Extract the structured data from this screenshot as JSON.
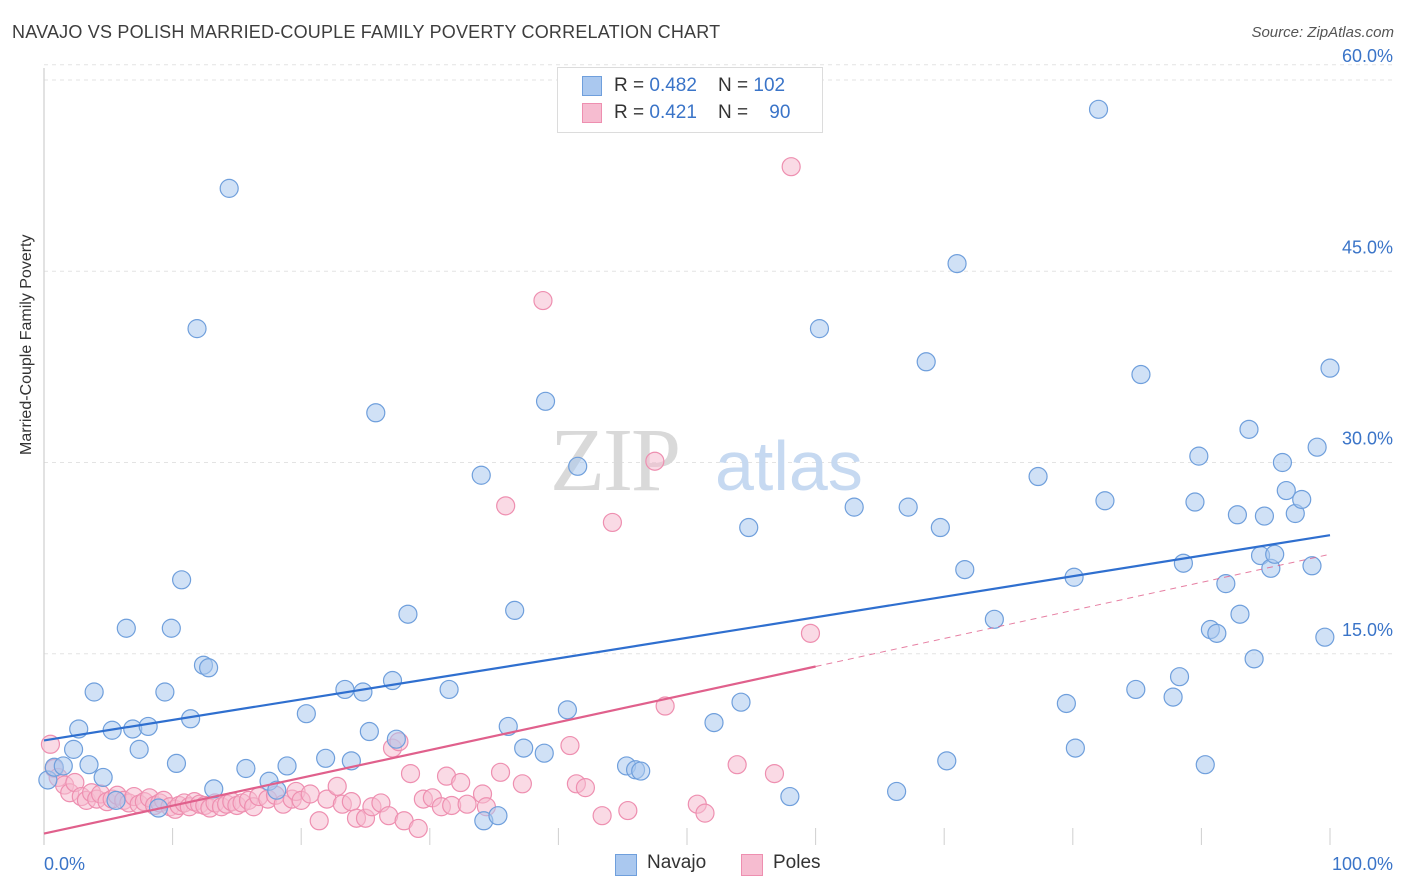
{
  "header": {
    "title": "NAVAJO VS POLISH MARRIED-COUPLE FAMILY POVERTY CORRELATION CHART",
    "source": "Source: ZipAtlas.com"
  },
  "legend": {
    "rows": [
      {
        "r_label": "R = ",
        "r_value": "0.482",
        "n_label": "N = ",
        "n_value": "102"
      },
      {
        "r_label": "R = ",
        "r_value": "0.421",
        "n_label": "N = ",
        "n_value": "90"
      }
    ],
    "bottom": [
      "Navajo",
      "Poles"
    ]
  },
  "colors": {
    "navajo_fill": "#aac8ef",
    "navajo_stroke": "#6f9fdc",
    "navajo_line": "#2f6fcf",
    "poles_fill": "#f6bcd0",
    "poles_stroke": "#ee8fb0",
    "poles_line": "#e0608c",
    "axis_text": "#3a74c8",
    "grid": "#e3e3e3"
  },
  "chart_data": {
    "type": "scatter",
    "title": "NAVAJO VS POLISH MARRIED-COUPLE FAMILY POVERTY CORRELATION CHART",
    "xlabel": "",
    "ylabel": "Married-Couple Family Poverty",
    "xlim": [
      0,
      100
    ],
    "ylim": [
      0,
      65
    ],
    "x_tick_labels": [
      "0.0%",
      "100.0%"
    ],
    "y_ticks": [
      15,
      30,
      45,
      60
    ],
    "y_tick_labels": [
      "15.0%",
      "30.0%",
      "45.0%",
      "60.0%"
    ],
    "grid": true,
    "legend_position": "top-center",
    "watermark": "ZIPatlas",
    "series": [
      {
        "name": "Navajo",
        "R": 0.482,
        "N": 102,
        "trend": {
          "x": [
            0,
            100
          ],
          "y": [
            8.2,
            24.3
          ]
        },
        "points": [
          [
            0.3,
            5.1
          ],
          [
            0.8,
            6.1
          ],
          [
            1.5,
            6.2
          ],
          [
            2.3,
            7.5
          ],
          [
            2.7,
            9.1
          ],
          [
            3.5,
            6.3
          ],
          [
            3.9,
            12.0
          ],
          [
            4.6,
            5.3
          ],
          [
            5.3,
            9.0
          ],
          [
            5.6,
            3.5
          ],
          [
            6.4,
            17.0
          ],
          [
            6.9,
            9.1
          ],
          [
            7.4,
            7.5
          ],
          [
            8.1,
            9.3
          ],
          [
            8.9,
            2.9
          ],
          [
            9.4,
            12.0
          ],
          [
            9.9,
            17.0
          ],
          [
            10.3,
            6.4
          ],
          [
            10.7,
            20.8
          ],
          [
            11.4,
            9.9
          ],
          [
            11.9,
            40.5
          ],
          [
            12.4,
            14.1
          ],
          [
            12.8,
            13.9
          ],
          [
            13.2,
            4.4
          ],
          [
            14.4,
            51.5
          ],
          [
            15.7,
            6.0
          ],
          [
            17.5,
            5.0
          ],
          [
            18.1,
            4.3
          ],
          [
            18.9,
            6.2
          ],
          [
            20.4,
            10.3
          ],
          [
            21.9,
            6.8
          ],
          [
            23.4,
            12.2
          ],
          [
            23.9,
            6.6
          ],
          [
            24.8,
            12.0
          ],
          [
            25.3,
            8.9
          ],
          [
            25.8,
            33.9
          ],
          [
            27.1,
            12.9
          ],
          [
            27.4,
            8.3
          ],
          [
            28.3,
            18.1
          ],
          [
            31.5,
            12.2
          ],
          [
            34.0,
            29.0
          ],
          [
            34.2,
            1.9
          ],
          [
            35.3,
            2.3
          ],
          [
            36.1,
            9.3
          ],
          [
            36.6,
            18.4
          ],
          [
            37.3,
            7.6
          ],
          [
            38.9,
            7.2
          ],
          [
            39.0,
            34.8
          ],
          [
            40.7,
            10.6
          ],
          [
            41.5,
            29.7
          ],
          [
            45.3,
            6.2
          ],
          [
            46.0,
            5.9
          ],
          [
            46.4,
            5.8
          ],
          [
            52.1,
            9.6
          ],
          [
            54.2,
            11.2
          ],
          [
            54.8,
            24.9
          ],
          [
            58.0,
            3.8
          ],
          [
            60.3,
            40.5
          ],
          [
            63.0,
            26.5
          ],
          [
            66.3,
            4.2
          ],
          [
            67.2,
            26.5
          ],
          [
            68.6,
            37.9
          ],
          [
            69.7,
            24.9
          ],
          [
            70.2,
            6.6
          ],
          [
            71.0,
            45.6
          ],
          [
            71.6,
            21.6
          ],
          [
            73.9,
            17.7
          ],
          [
            77.3,
            28.9
          ],
          [
            79.5,
            11.1
          ],
          [
            80.1,
            21.0
          ],
          [
            80.2,
            7.6
          ],
          [
            82.0,
            57.7
          ],
          [
            82.5,
            27.0
          ],
          [
            84.9,
            12.2
          ],
          [
            85.3,
            36.9
          ],
          [
            87.8,
            11.6
          ],
          [
            88.3,
            13.2
          ],
          [
            88.6,
            22.1
          ],
          [
            89.5,
            26.9
          ],
          [
            89.8,
            30.5
          ],
          [
            90.3,
            6.3
          ],
          [
            90.7,
            16.9
          ],
          [
            91.2,
            16.6
          ],
          [
            91.9,
            20.5
          ],
          [
            92.8,
            25.9
          ],
          [
            93.0,
            18.1
          ],
          [
            93.7,
            32.6
          ],
          [
            94.1,
            14.6
          ],
          [
            94.6,
            22.7
          ],
          [
            94.9,
            25.8
          ],
          [
            95.4,
            21.7
          ],
          [
            95.7,
            22.8
          ],
          [
            96.3,
            30.0
          ],
          [
            96.6,
            27.8
          ],
          [
            97.3,
            26.0
          ],
          [
            97.8,
            27.1
          ],
          [
            98.6,
            21.9
          ],
          [
            99.0,
            31.2
          ],
          [
            99.6,
            16.3
          ],
          [
            100.0,
            37.4
          ]
        ]
      },
      {
        "name": "Poles",
        "R": 0.421,
        "N": 90,
        "trend": {
          "x": [
            0,
            60
          ],
          "y": [
            0.9,
            14.0
          ]
        },
        "trend_extension": {
          "x": [
            60,
            100
          ],
          "y": [
            14.0,
            22.8
          ]
        },
        "points": [
          [
            0.5,
            7.9
          ],
          [
            0.8,
            6.0
          ],
          [
            1.1,
            5.3
          ],
          [
            1.6,
            4.7
          ],
          [
            2.0,
            4.1
          ],
          [
            2.4,
            4.9
          ],
          [
            2.9,
            3.8
          ],
          [
            3.3,
            3.5
          ],
          [
            3.7,
            4.1
          ],
          [
            4.1,
            3.6
          ],
          [
            4.4,
            4.0
          ],
          [
            4.9,
            3.4
          ],
          [
            5.3,
            3.6
          ],
          [
            5.7,
            3.9
          ],
          [
            6.2,
            3.5
          ],
          [
            6.6,
            3.3
          ],
          [
            7.0,
            3.8
          ],
          [
            7.4,
            3.2
          ],
          [
            7.8,
            3.4
          ],
          [
            8.2,
            3.7
          ],
          [
            8.6,
            3.1
          ],
          [
            9.0,
            3.3
          ],
          [
            9.3,
            3.5
          ],
          [
            9.8,
            3.0
          ],
          [
            10.2,
            2.8
          ],
          [
            10.5,
            3.1
          ],
          [
            10.9,
            3.3
          ],
          [
            11.3,
            3.0
          ],
          [
            11.7,
            3.4
          ],
          [
            12.1,
            3.2
          ],
          [
            12.5,
            3.1
          ],
          [
            12.9,
            2.9
          ],
          [
            13.3,
            3.3
          ],
          [
            13.8,
            3.0
          ],
          [
            14.2,
            3.2
          ],
          [
            14.6,
            3.4
          ],
          [
            15.0,
            3.1
          ],
          [
            15.4,
            3.3
          ],
          [
            15.9,
            3.5
          ],
          [
            16.3,
            3.0
          ],
          [
            16.7,
            3.8
          ],
          [
            17.4,
            3.6
          ],
          [
            18.0,
            3.9
          ],
          [
            18.6,
            3.2
          ],
          [
            19.3,
            3.6
          ],
          [
            19.6,
            4.2
          ],
          [
            20.0,
            3.5
          ],
          [
            20.7,
            4.0
          ],
          [
            21.4,
            1.9
          ],
          [
            22.0,
            3.6
          ],
          [
            22.8,
            4.6
          ],
          [
            23.2,
            3.2
          ],
          [
            23.9,
            3.4
          ],
          [
            24.3,
            2.1
          ],
          [
            25.0,
            2.1
          ],
          [
            25.5,
            3.0
          ],
          [
            26.2,
            3.3
          ],
          [
            26.8,
            2.3
          ],
          [
            27.1,
            7.6
          ],
          [
            27.6,
            8.1
          ],
          [
            28.0,
            1.9
          ],
          [
            28.5,
            5.6
          ],
          [
            29.1,
            1.3
          ],
          [
            29.5,
            3.6
          ],
          [
            30.2,
            3.7
          ],
          [
            30.9,
            3.0
          ],
          [
            31.3,
            5.4
          ],
          [
            31.7,
            3.1
          ],
          [
            32.4,
            4.9
          ],
          [
            32.9,
            3.2
          ],
          [
            34.1,
            4.0
          ],
          [
            34.4,
            3.0
          ],
          [
            35.5,
            5.7
          ],
          [
            35.9,
            26.6
          ],
          [
            37.2,
            4.8
          ],
          [
            38.8,
            42.7
          ],
          [
            40.9,
            7.8
          ],
          [
            41.4,
            4.8
          ],
          [
            42.1,
            4.5
          ],
          [
            43.4,
            2.3
          ],
          [
            44.2,
            25.3
          ],
          [
            45.4,
            2.7
          ],
          [
            47.5,
            30.1
          ],
          [
            48.3,
            10.9
          ],
          [
            50.8,
            3.2
          ],
          [
            51.4,
            2.5
          ],
          [
            53.9,
            6.3
          ],
          [
            56.8,
            5.6
          ],
          [
            58.1,
            53.2
          ],
          [
            59.6,
            16.6
          ]
        ]
      }
    ]
  }
}
